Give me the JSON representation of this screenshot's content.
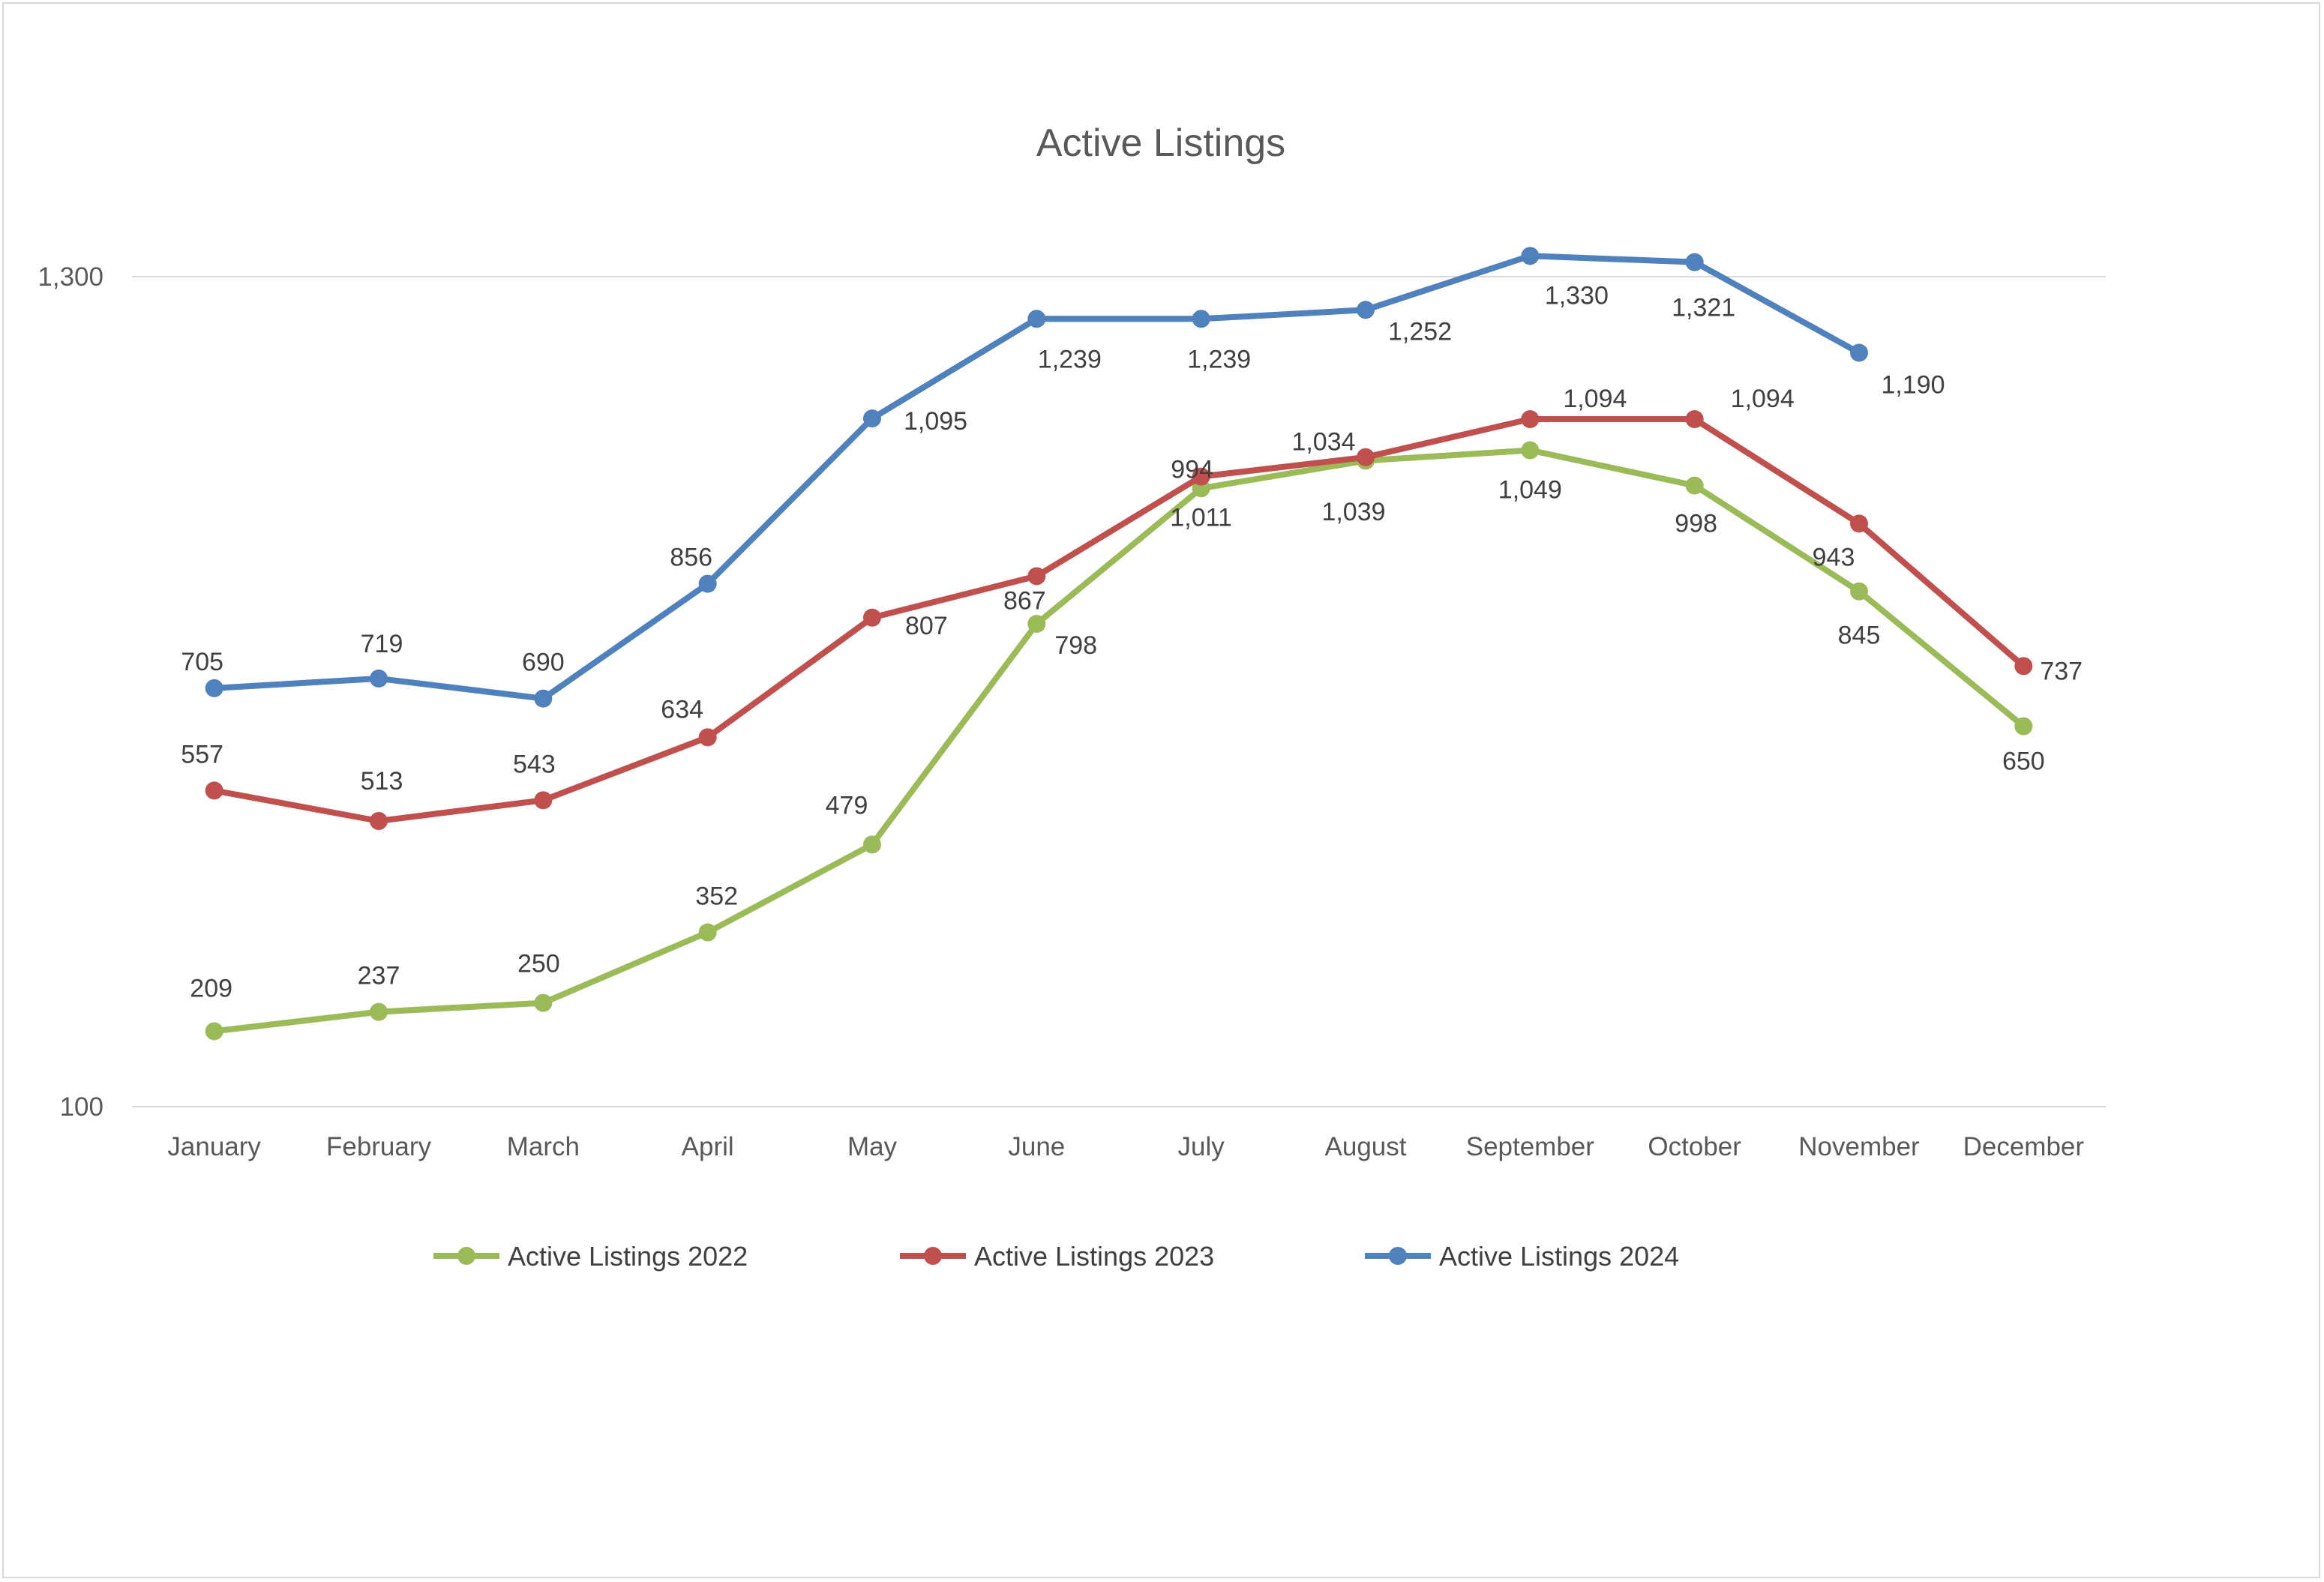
{
  "chart_data": {
    "type": "line",
    "title": "Active Listings",
    "xlabel": "",
    "ylabel": "",
    "categories": [
      "January",
      "February",
      "March",
      "April",
      "May",
      "June",
      "July",
      "August",
      "September",
      "October",
      "November",
      "December"
    ],
    "y_axis": {
      "min": 100,
      "max": 1300,
      "tick_labels": [
        "100",
        "1,300"
      ],
      "scale": "linear"
    },
    "grid": "horizontal",
    "legend_position": "bottom",
    "series": [
      {
        "name": "Active Listings 2022",
        "color": "#9bbb59",
        "values": [
          209,
          237,
          250,
          352,
          479,
          798,
          994,
          1034,
          1049,
          998,
          845,
          650
        ],
        "labels": [
          "209",
          "237",
          "250",
          "352",
          "479",
          "798",
          "994",
          "1,034",
          "1,049",
          "998",
          "845",
          "650"
        ]
      },
      {
        "name": "Active Listings 2023",
        "color": "#c0504d",
        "values": [
          557,
          513,
          543,
          634,
          807,
          867,
          1011,
          1039,
          1094,
          1094,
          943,
          737
        ],
        "labels": [
          "557",
          "513",
          "543",
          "634",
          "807",
          "867",
          "1,011",
          "1,039",
          "1,094",
          "1,094",
          "943",
          "737"
        ]
      },
      {
        "name": "Active Listings 2024",
        "color": "#4f81bd",
        "values": [
          705,
          719,
          690,
          856,
          1095,
          1239,
          1239,
          1252,
          1330,
          1321,
          1190,
          null
        ],
        "labels": [
          "705",
          "719",
          "690",
          "856",
          "1,095",
          "1,239",
          "1,239",
          "1,252",
          "1,330",
          "1,321",
          "1,190",
          null
        ]
      }
    ],
    "gridline_color": "#d9d9d9"
  }
}
